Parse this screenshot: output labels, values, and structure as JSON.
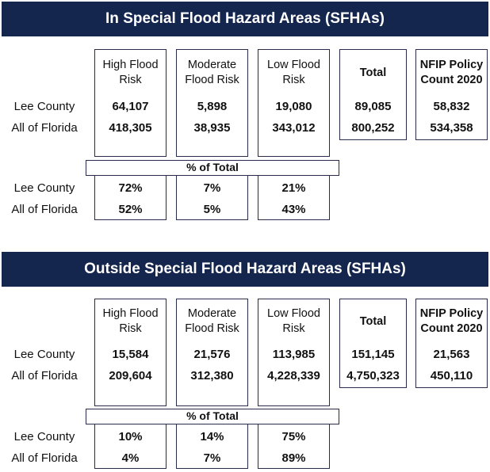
{
  "sections": [
    {
      "title": "In Special Flood Hazard Areas (SFHAs)",
      "headers": {
        "high": "High Flood\nRisk",
        "moderate": "Moderate\nFlood Risk",
        "low": "Low Flood\nRisk",
        "total": "Total",
        "nfip": "NFIP Policy\nCount 2020"
      },
      "rows": [
        {
          "label": "Lee County",
          "high": "64,107",
          "moderate": "5,898",
          "low": "19,080",
          "total": "89,085",
          "nfip": "58,832"
        },
        {
          "label": "All of Florida",
          "high": "418,305",
          "moderate": "38,935",
          "low": "343,012",
          "total": "800,252",
          "nfip": "534,358"
        }
      ],
      "pct_label": "% of Total",
      "pct_rows": [
        {
          "label": "Lee County",
          "high": "72%",
          "moderate": "7%",
          "low": "21%"
        },
        {
          "label": "All of Florida",
          "high": "52%",
          "moderate": "5%",
          "low": "43%"
        }
      ]
    },
    {
      "title": "Outside Special Flood Hazard Areas (SFHAs)",
      "headers": {
        "high": "High Flood\nRisk",
        "moderate": "Moderate\nFlood Risk",
        "low": "Low Flood\nRisk",
        "total": "Total",
        "nfip": "NFIP Policy\nCount 2020"
      },
      "rows": [
        {
          "label": "Lee County",
          "high": "15,584",
          "moderate": "21,576",
          "low": "113,985",
          "total": "151,145",
          "nfip": "21,563"
        },
        {
          "label": "All of Florida",
          "high": "209,604",
          "moderate": "312,380",
          "low": "4,228,339",
          "total": "4,750,323",
          "nfip": "450,110"
        }
      ],
      "pct_label": "% of Total",
      "pct_rows": [
        {
          "label": "Lee County",
          "high": "10%",
          "moderate": "14%",
          "low": "75%"
        },
        {
          "label": "All of Florida",
          "high": "4%",
          "moderate": "7%",
          "low": "89%"
        }
      ]
    }
  ]
}
